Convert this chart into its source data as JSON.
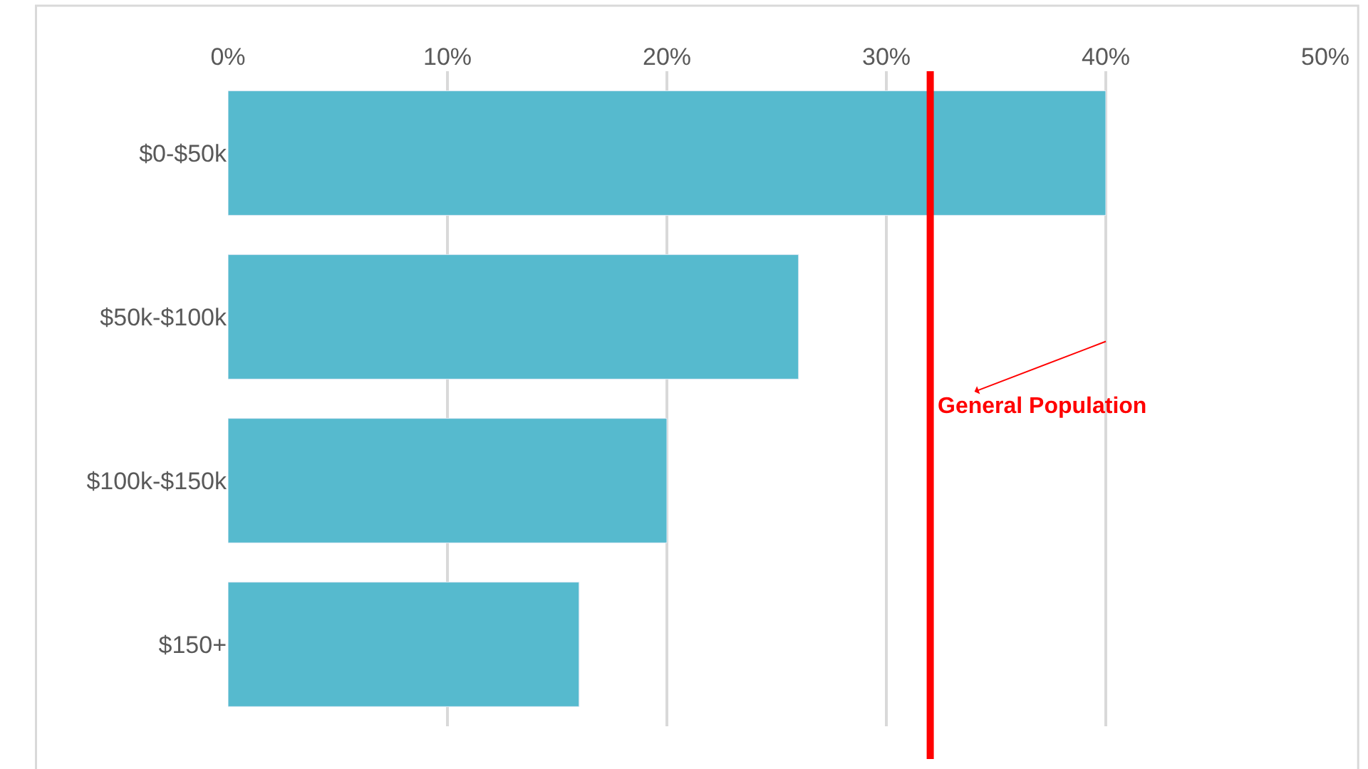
{
  "chart_data": {
    "type": "bar",
    "orientation": "horizontal",
    "categories": [
      "$0-$50k",
      "$50k-$100k",
      "$100k-$150k",
      "$150+"
    ],
    "values": [
      40,
      26,
      20,
      16
    ],
    "color": "#56bace",
    "xlim": [
      0,
      50
    ],
    "xticks": [
      {
        "value": 0,
        "label": "0%"
      },
      {
        "value": 10,
        "label": "10%"
      },
      {
        "value": 20,
        "label": "20%"
      },
      {
        "value": 30,
        "label": "30%"
      },
      {
        "value": 40,
        "label": "40%"
      },
      {
        "value": 50,
        "label": "50%"
      }
    ],
    "grid": "x",
    "legend": false,
    "ref_lines": [
      {
        "axis": "x",
        "value": 32,
        "label": "General Population",
        "color": "#ff0000",
        "line_style": "solid"
      }
    ]
  }
}
